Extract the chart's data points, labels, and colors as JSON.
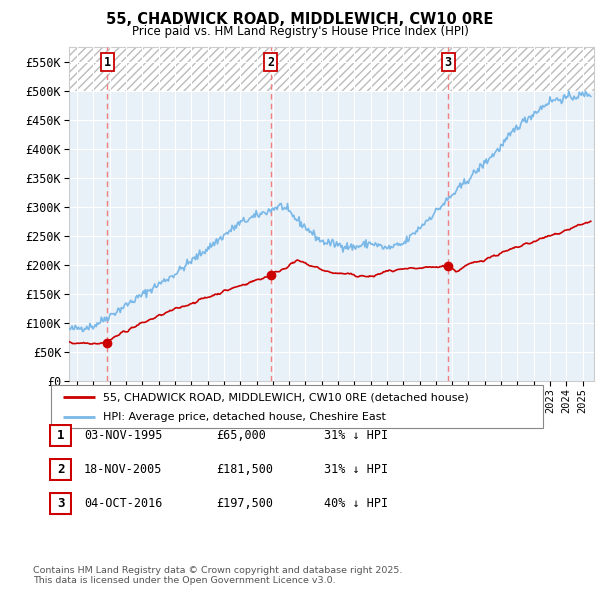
{
  "title": "55, CHADWICK ROAD, MIDDLEWICH, CW10 0RE",
  "subtitle": "Price paid vs. HM Land Registry's House Price Index (HPI)",
  "ylim": [
    0,
    575000
  ],
  "yticks": [
    0,
    50000,
    100000,
    150000,
    200000,
    250000,
    300000,
    350000,
    400000,
    450000,
    500000,
    550000
  ],
  "ytick_labels": [
    "£0",
    "£50K",
    "£100K",
    "£150K",
    "£200K",
    "£250K",
    "£300K",
    "£350K",
    "£400K",
    "£450K",
    "£500K",
    "£550K"
  ],
  "hatch_above": 500000,
  "hpi_color": "#7ab8e8",
  "price_color": "#cc0000",
  "vline_color": "#f08080",
  "background_color": "#e8f0f8",
  "sales": [
    {
      "num": 1,
      "date": "03-NOV-1995",
      "price": 65000,
      "pct": "31%",
      "x_year": 1995.84
    },
    {
      "num": 2,
      "date": "18-NOV-2005",
      "price": 181500,
      "pct": "31%",
      "x_year": 2005.88
    },
    {
      "num": 3,
      "date": "04-OCT-2016",
      "price": 197500,
      "pct": "40%",
      "x_year": 2016.75
    }
  ],
  "legend_line1": "55, CHADWICK ROAD, MIDDLEWICH, CW10 0RE (detached house)",
  "legend_line2": "HPI: Average price, detached house, Cheshire East",
  "footnote": "Contains HM Land Registry data © Crown copyright and database right 2025.\nThis data is licensed under the Open Government Licence v3.0.",
  "xmin": 1993.5,
  "xmax": 2025.7
}
